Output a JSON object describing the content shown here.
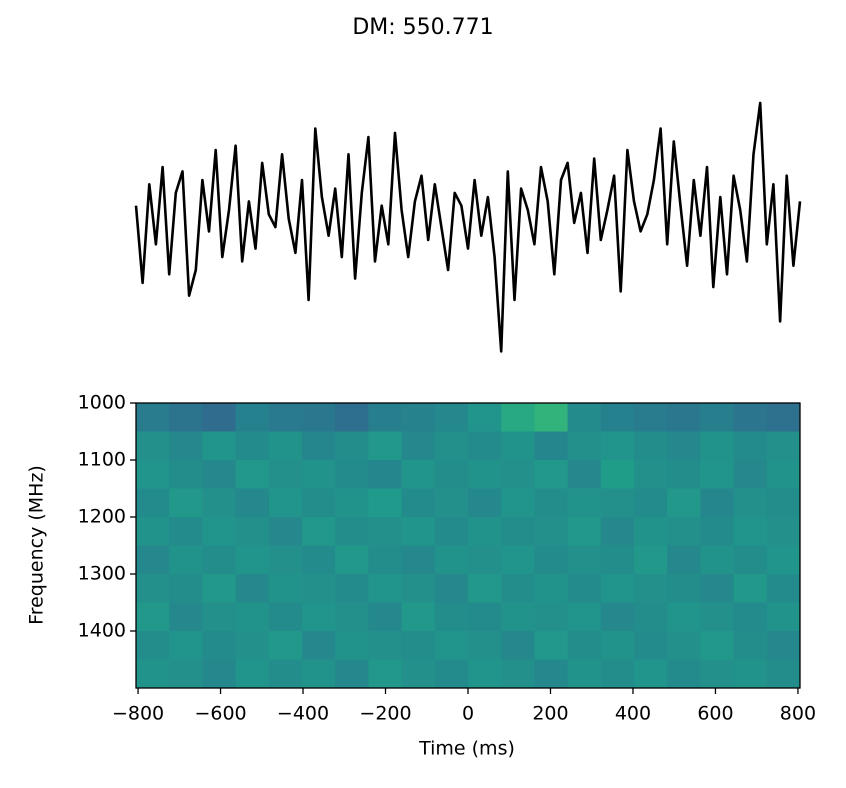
{
  "chart_data": [
    {
      "type": "line",
      "title": "DM: 550.771",
      "color": "#000000",
      "x": [
        -800,
        -784,
        -768,
        -752,
        -736,
        -720,
        -704,
        -688,
        -672,
        -656,
        -640,
        -624,
        -608,
        -592,
        -576,
        -560,
        -544,
        -528,
        -512,
        -496,
        -480,
        -464,
        -448,
        -432,
        -416,
        -400,
        -384,
        -368,
        -352,
        -336,
        -320,
        -304,
        -288,
        -272,
        -256,
        -240,
        -224,
        -208,
        -192,
        -176,
        -160,
        -144,
        -128,
        -112,
        -96,
        -80,
        -64,
        -48,
        -32,
        -16,
        0,
        16,
        32,
        48,
        64,
        80,
        96,
        112,
        128,
        144,
        160,
        176,
        192,
        208,
        224,
        240,
        256,
        272,
        288,
        304,
        320,
        336,
        352,
        368,
        384,
        400,
        416,
        432,
        448,
        464,
        480,
        496,
        512,
        528,
        544,
        560,
        576,
        591,
        608,
        624,
        640,
        656,
        672,
        688,
        704,
        720,
        736,
        752,
        768,
        784,
        800
      ],
      "values": [
        0.3,
        -1.5,
        0.8,
        -0.6,
        1.2,
        -1.3,
        0.6,
        1.1,
        -1.8,
        -1.2,
        0.9,
        -0.3,
        1.6,
        -0.9,
        0.2,
        1.7,
        -1.0,
        0.4,
        -0.7,
        1.3,
        0.1,
        -0.2,
        1.5,
        0.0,
        -0.8,
        0.9,
        -1.9,
        2.1,
        0.5,
        -0.4,
        0.7,
        -0.9,
        1.5,
        -1.4,
        0.6,
        1.9,
        -1.0,
        0.3,
        -0.6,
        2.0,
        0.2,
        -0.9,
        0.4,
        1.0,
        -0.5,
        0.8,
        -0.2,
        -1.2,
        0.6,
        0.3,
        -0.7,
        0.9,
        -0.4,
        0.5,
        -0.9,
        -3.1,
        1.1,
        -1.9,
        0.7,
        0.2,
        -0.6,
        1.2,
        0.4,
        -1.3,
        0.9,
        1.3,
        -0.1,
        0.6,
        -0.8,
        1.4,
        -0.5,
        0.2,
        1.0,
        -1.7,
        1.6,
        0.4,
        -0.3,
        0.1,
        0.9,
        2.1,
        -0.6,
        1.8,
        0.3,
        -1.1,
        0.9,
        -0.4,
        1.2,
        -1.6,
        0.5,
        -1.3,
        1.0,
        0.2,
        -1.0,
        1.5,
        2.7,
        -0.6,
        0.8,
        -2.4,
        1.0,
        -1.1,
        0.4
      ],
      "ylim": [
        -3.3,
        3.0
      ]
    },
    {
      "type": "heatmap",
      "cmap": "viridis",
      "vlim": [
        0,
        1
      ],
      "xlim": [
        -805,
        805
      ],
      "ylim": [
        1500,
        1000
      ],
      "xlabel": "Time (ms)",
      "ylabel": "Frequency (MHz)",
      "xticks": [
        {
          "value": -800,
          "label": "−800"
        },
        {
          "value": -600,
          "label": "−600"
        },
        {
          "value": -400,
          "label": "−400"
        },
        {
          "value": -200,
          "label": "−200"
        },
        0,
        200,
        400,
        600,
        800
      ],
      "yticks": [
        1000,
        1100,
        1200,
        1300,
        1400
      ],
      "values": [
        [
          0.42,
          0.38,
          0.35,
          0.44,
          0.41,
          0.4,
          0.36,
          0.43,
          0.45,
          0.47,
          0.52,
          0.6,
          0.65,
          0.48,
          0.44,
          0.42,
          0.4,
          0.43,
          0.39,
          0.37
        ],
        [
          0.5,
          0.47,
          0.52,
          0.48,
          0.51,
          0.46,
          0.49,
          0.53,
          0.47,
          0.5,
          0.48,
          0.51,
          0.46,
          0.5,
          0.52,
          0.49,
          0.47,
          0.51,
          0.48,
          0.5
        ],
        [
          0.52,
          0.49,
          0.47,
          0.53,
          0.5,
          0.51,
          0.48,
          0.46,
          0.52,
          0.49,
          0.51,
          0.5,
          0.53,
          0.47,
          0.55,
          0.5,
          0.49,
          0.52,
          0.47,
          0.51
        ],
        [
          0.48,
          0.53,
          0.5,
          0.47,
          0.52,
          0.49,
          0.51,
          0.54,
          0.48,
          0.5,
          0.47,
          0.52,
          0.49,
          0.51,
          0.5,
          0.48,
          0.53,
          0.46,
          0.5,
          0.49
        ],
        [
          0.51,
          0.48,
          0.52,
          0.5,
          0.47,
          0.53,
          0.49,
          0.5,
          0.52,
          0.48,
          0.51,
          0.49,
          0.5,
          0.53,
          0.47,
          0.51,
          0.5,
          0.48,
          0.52,
          0.5
        ],
        [
          0.47,
          0.51,
          0.49,
          0.52,
          0.5,
          0.48,
          0.53,
          0.49,
          0.47,
          0.51,
          0.5,
          0.52,
          0.48,
          0.5,
          0.49,
          0.53,
          0.47,
          0.51,
          0.49,
          0.52
        ],
        [
          0.5,
          0.49,
          0.53,
          0.47,
          0.51,
          0.5,
          0.48,
          0.52,
          0.5,
          0.47,
          0.53,
          0.49,
          0.51,
          0.48,
          0.52,
          0.5,
          0.49,
          0.47,
          0.53,
          0.48
        ],
        [
          0.53,
          0.47,
          0.5,
          0.51,
          0.48,
          0.52,
          0.5,
          0.47,
          0.53,
          0.49,
          0.48,
          0.51,
          0.5,
          0.52,
          0.47,
          0.49,
          0.52,
          0.5,
          0.48,
          0.51
        ],
        [
          0.49,
          0.52,
          0.48,
          0.5,
          0.53,
          0.47,
          0.51,
          0.5,
          0.49,
          0.52,
          0.5,
          0.47,
          0.53,
          0.49,
          0.51,
          0.48,
          0.5,
          0.53,
          0.49,
          0.47
        ],
        [
          0.51,
          0.5,
          0.47,
          0.52,
          0.49,
          0.51,
          0.47,
          0.53,
          0.5,
          0.48,
          0.52,
          0.5,
          0.47,
          0.51,
          0.49,
          0.52,
          0.48,
          0.5,
          0.51,
          0.49
        ]
      ]
    }
  ]
}
